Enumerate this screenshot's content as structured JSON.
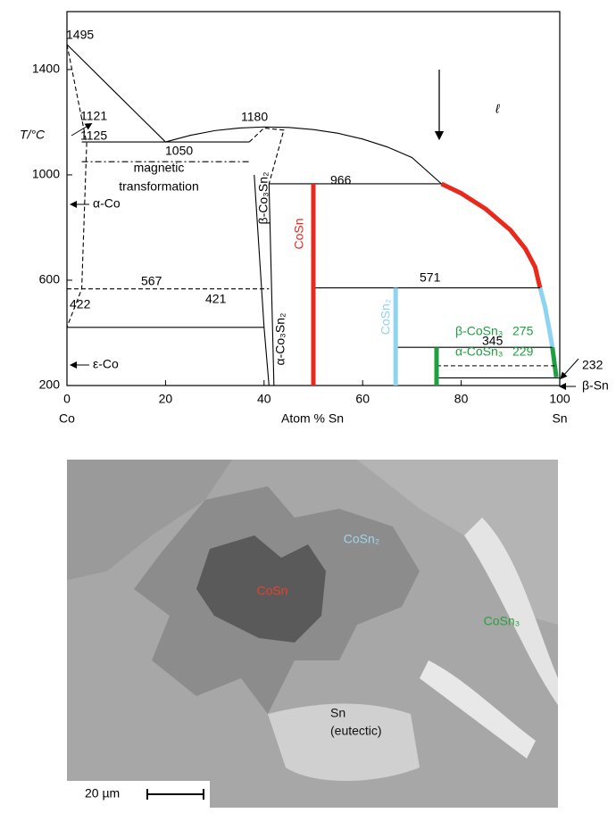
{
  "chart_data": {
    "type": "phase-diagram",
    "y_label": "T/°C",
    "x_label": "Atom % Sn",
    "x_end_labels": [
      "Co",
      "Sn"
    ],
    "xlim": [
      0,
      100
    ],
    "ylim": [
      200,
      1620
    ],
    "xticks": [
      0,
      20,
      40,
      60,
      80,
      100
    ],
    "yticks": [
      200,
      600,
      1000,
      1400
    ],
    "boundaries": [
      {
        "style": "solid",
        "color": "#000000",
        "x": [
          0,
          20
        ],
        "y": [
          1495,
          1125
        ]
      },
      {
        "style": "solid",
        "color": "#000000",
        "x": [
          20,
          25,
          30,
          35,
          40,
          45,
          50,
          55,
          60,
          65,
          70,
          76
        ],
        "y": [
          1125,
          1150,
          1168,
          1178,
          1182,
          1180,
          1172,
          1158,
          1136,
          1106,
          1066,
          966
        ]
      },
      {
        "style": "thick",
        "color": "#e8291c",
        "x": [
          76,
          80,
          85,
          90,
          93,
          95,
          96
        ],
        "y": [
          966,
          930,
          870,
          790,
          720,
          650,
          571
        ]
      },
      {
        "style": "thick",
        "color": "#8fd3f2",
        "x": [
          96,
          97,
          98,
          98.5
        ],
        "y": [
          571,
          500,
          400,
          345
        ]
      },
      {
        "style": "thick",
        "color": "#1fa040",
        "x": [
          98.5,
          99.3
        ],
        "y": [
          345,
          232
        ]
      },
      {
        "style": "solid",
        "color": "#000000",
        "x": [
          41,
          76
        ],
        "y": [
          966,
          966
        ]
      },
      {
        "style": "solid",
        "color": "#000000",
        "x": [
          50,
          96
        ],
        "y": [
          571,
          571
        ]
      },
      {
        "style": "dashed",
        "color": "#000000",
        "x": [
          0,
          41
        ],
        "y": [
          567,
          567
        ]
      },
      {
        "style": "solid",
        "color": "#000000",
        "x": [
          0,
          40
        ],
        "y": [
          421,
          421
        ]
      },
      {
        "style": "solid",
        "color": "#000000",
        "x": [
          66.7,
          98.5
        ],
        "y": [
          345,
          345
        ]
      },
      {
        "style": "dashed",
        "color": "#000000",
        "x": [
          75,
          99
        ],
        "y": [
          275,
          275
        ]
      },
      {
        "style": "solid",
        "color": "#000000",
        "x": [
          75,
          100
        ],
        "y": [
          229,
          229
        ]
      },
      {
        "style": "solid",
        "color": "#000000",
        "x": [
          3,
          37
        ],
        "y": [
          1125,
          1125
        ]
      },
      {
        "style": "dashdot",
        "color": "#000000",
        "x": [
          3,
          37
        ],
        "y": [
          1050,
          1050
        ]
      },
      {
        "style": "dashed",
        "color": "#000000",
        "x": [
          0,
          4,
          3,
          0
        ],
        "y": [
          1495,
          1120,
          567,
          422
        ]
      },
      {
        "style": "dashed",
        "color": "#000000",
        "x": [
          37,
          40,
          44,
          41
        ],
        "y": [
          1125,
          1178,
          1170,
          966
        ]
      },
      {
        "style": "solid",
        "color": "#000000",
        "x": [
          38,
          40,
          41
        ],
        "y": [
          1000,
          421,
          200
        ]
      },
      {
        "style": "solid",
        "color": "#000000",
        "x": [
          41,
          42
        ],
        "y": [
          966,
          200
        ]
      },
      {
        "style": "thick",
        "color": "#e8291c",
        "x": [
          50,
          50
        ],
        "y": [
          966,
          200
        ]
      },
      {
        "style": "thick",
        "color": "#8fd3f2",
        "x": [
          66.7,
          66.7
        ],
        "y": [
          571,
          200
        ]
      },
      {
        "style": "thick",
        "color": "#1fa040",
        "x": [
          75,
          75
        ],
        "y": [
          345,
          200
        ]
      }
    ],
    "annotations": [
      {
        "text": "1495"
      },
      {
        "text": "1121"
      },
      {
        "text": "1125"
      },
      {
        "text": "1050"
      },
      {
        "text": "magnetic"
      },
      {
        "text": "transformation"
      },
      {
        "text": "1180"
      },
      {
        "text": "966"
      },
      {
        "text": "567"
      },
      {
        "text": "571"
      },
      {
        "text": "422"
      },
      {
        "text": "421"
      },
      {
        "text": "345"
      },
      {
        "text": "α-Co"
      },
      {
        "text": "ε-Co"
      },
      {
        "text": "ℓ"
      },
      {
        "text": "232"
      },
      {
        "text": "β-Sn"
      },
      {
        "text": "β-Co₃Sn₂"
      },
      {
        "text": "α-Co₃Sn₂"
      },
      {
        "text": "CoSn",
        "color": "#e8291c"
      },
      {
        "text": "CoSn₂",
        "color": "#8fd3f2"
      },
      {
        "text": "β-CoSn₃",
        "color": "#1fa040"
      },
      {
        "text": "275",
        "color": "#1fa040"
      },
      {
        "text": "α-CoSn₃",
        "color": "#1fa040"
      },
      {
        "text": "229",
        "color": "#1fa040"
      }
    ]
  },
  "micrograph": {
    "labels": [
      {
        "text": "CoSn",
        "color": "#e8402c"
      },
      {
        "text": "CoSn₂",
        "color": "#9fd4ee"
      },
      {
        "text": "CoSn₃",
        "color": "#2aa040"
      },
      {
        "text": "Sn",
        "color": "#111111"
      },
      {
        "text": "(eutectic)",
        "color": "#111111"
      }
    ],
    "scale_bar": "20 µm"
  }
}
